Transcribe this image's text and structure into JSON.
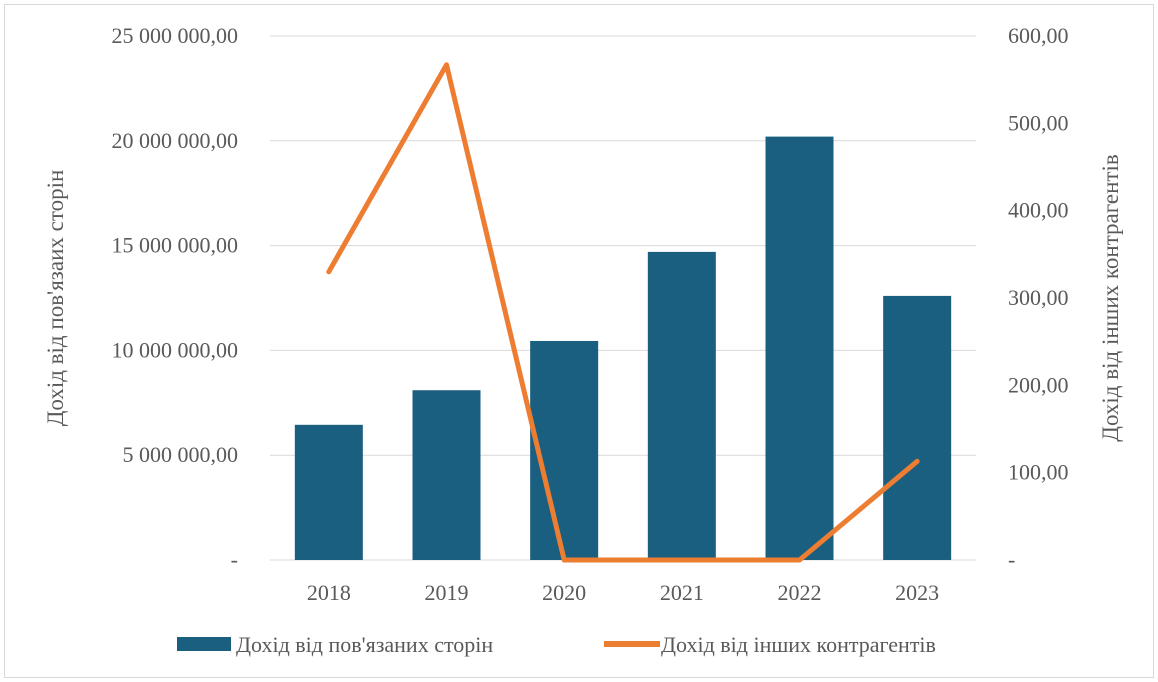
{
  "chart_data": {
    "type": "bar+line",
    "categories": [
      "2018",
      "2019",
      "2020",
      "2021",
      "2022",
      "2023"
    ],
    "series": [
      {
        "name": "Дохід від пов'язаних сторін",
        "type": "bar",
        "axis": "left",
        "color": "#1a5e80",
        "values": [
          6450000,
          8100000,
          10450000,
          14700000,
          20200000,
          12600000
        ]
      },
      {
        "name": "Дохід від інших контрагентів",
        "type": "line",
        "axis": "right",
        "color": "#ed7d31",
        "values": [
          330,
          567,
          0,
          0,
          0,
          113
        ]
      }
    ],
    "left_axis": {
      "label": "Дохід від пов'язаих сторін",
      "ylim": [
        0,
        25000000
      ],
      "ticks": [
        {
          "value": 0,
          "label": "-"
        },
        {
          "value": 5000000,
          "label": "5 000 000,00"
        },
        {
          "value": 10000000,
          "label": "10 000 000,00"
        },
        {
          "value": 15000000,
          "label": "15 000 000,00"
        },
        {
          "value": 20000000,
          "label": "20 000 000,00"
        },
        {
          "value": 25000000,
          "label": "25 000 000,00"
        }
      ]
    },
    "right_axis": {
      "label": "Дохід від інших контрагентів",
      "ylim": [
        0,
        600
      ],
      "ticks": [
        {
          "value": 0,
          "label": "-"
        },
        {
          "value": 100,
          "label": "100,00"
        },
        {
          "value": 200,
          "label": "200,00"
        },
        {
          "value": 300,
          "label": "300,00"
        },
        {
          "value": 400,
          "label": "400,00"
        },
        {
          "value": 500,
          "label": "500,00"
        },
        {
          "value": 600,
          "label": "600,00"
        }
      ]
    },
    "grid": true,
    "legend": "bottom"
  }
}
